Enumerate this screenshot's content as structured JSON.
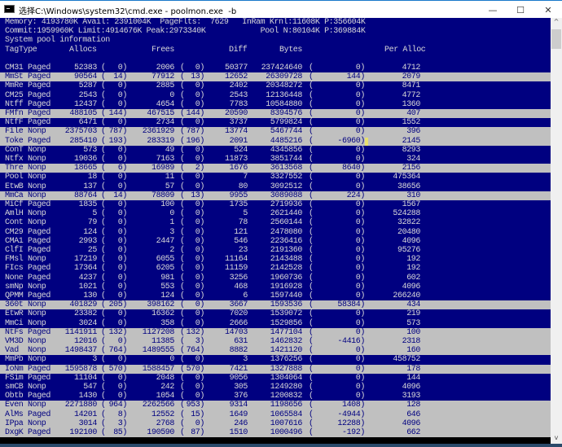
{
  "window": {
    "title": "选择C:\\Windows\\system32\\cmd.exe - poolmon.exe  -b",
    "minimize_glyph": "—",
    "maximize_glyph": "☐",
    "close_glyph": "✕"
  },
  "console": {
    "colors": {
      "background": "#000080",
      "text": "#d8d8d8",
      "highlight_bg": "#c0c0c0",
      "highlight_text": "#000080"
    },
    "summary_lines": [
      "Memory: 4193780K Avail: 2391004K  PageFlts:  7629   InRam Krnl:11608K P:356604K",
      "Commit:1959960K Limit:4914676K Peak:2973340K            Pool N:80104K P:369884K",
      "System pool information"
    ],
    "columns": {
      "tag": "Tag",
      "type": "Type",
      "allocs": "Allocs",
      "frees": "Frees",
      "diff": "Diff",
      "bytes": "Bytes",
      "per_alloc": "Per Alloc"
    },
    "rows": [
      {
        "tag": "CM31",
        "type": "Paged",
        "allocs": "52383",
        "allocs_delta": "0",
        "frees": "2006",
        "frees_delta": "0",
        "diff": "50377",
        "bytes": "237424640",
        "bytes_delta": "0",
        "per_alloc": "4712",
        "highlighted": false
      },
      {
        "tag": "MmSt",
        "type": "Paged",
        "allocs": "90564",
        "allocs_delta": "14",
        "frees": "77912",
        "frees_delta": "13",
        "diff": "12652",
        "bytes": "26309728",
        "bytes_delta": "144",
        "per_alloc": "2079",
        "highlighted": true
      },
      {
        "tag": "MmRe",
        "type": "Paged",
        "allocs": "5287",
        "allocs_delta": "0",
        "frees": "2885",
        "frees_delta": "0",
        "diff": "2402",
        "bytes": "20348272",
        "bytes_delta": "0",
        "per_alloc": "8471",
        "highlighted": false
      },
      {
        "tag": "CM25",
        "type": "Paged",
        "allocs": "2543",
        "allocs_delta": "0",
        "frees": "0",
        "frees_delta": "0",
        "diff": "2543",
        "bytes": "12136448",
        "bytes_delta": "0",
        "per_alloc": "4772",
        "highlighted": false
      },
      {
        "tag": "Ntff",
        "type": "Paged",
        "allocs": "12437",
        "allocs_delta": "0",
        "frees": "4654",
        "frees_delta": "0",
        "diff": "7783",
        "bytes": "10584880",
        "bytes_delta": "0",
        "per_alloc": "1360",
        "highlighted": false
      },
      {
        "tag": "FMfn",
        "type": "Paged",
        "allocs": "488105",
        "allocs_delta": "144",
        "frees": "467515",
        "frees_delta": "144",
        "diff": "20590",
        "bytes": "8394576",
        "bytes_delta": "0",
        "per_alloc": "407",
        "highlighted": true
      },
      {
        "tag": "NtfF",
        "type": "Paged",
        "allocs": "6471",
        "allocs_delta": "0",
        "frees": "2734",
        "frees_delta": "0",
        "diff": "3737",
        "bytes": "5799824",
        "bytes_delta": "0",
        "per_alloc": "1552",
        "highlighted": false
      },
      {
        "tag": "File",
        "type": "Nonp",
        "allocs": "2375703",
        "allocs_delta": "787",
        "frees": "2361929",
        "frees_delta": "787",
        "diff": "13774",
        "bytes": "5467744",
        "bytes_delta": "0",
        "per_alloc": "396",
        "highlighted": true
      },
      {
        "tag": "Toke",
        "type": "Paged",
        "allocs": "285410",
        "allocs_delta": "193",
        "frees": "283319",
        "frees_delta": "196",
        "diff": "2091",
        "bytes": "4485216",
        "bytes_delta": "-6960",
        "per_alloc": "2145",
        "highlighted": true
      },
      {
        "tag": "ConT",
        "type": "Nonp",
        "allocs": "573",
        "allocs_delta": "0",
        "frees": "49",
        "frees_delta": "0",
        "diff": "524",
        "bytes": "4345856",
        "bytes_delta": "0",
        "per_alloc": "8293",
        "highlighted": false
      },
      {
        "tag": "Ntfx",
        "type": "Nonp",
        "allocs": "19036",
        "allocs_delta": "0",
        "frees": "7163",
        "frees_delta": "0",
        "diff": "11873",
        "bytes": "3851744",
        "bytes_delta": "0",
        "per_alloc": "324",
        "highlighted": false
      },
      {
        "tag": "Thre",
        "type": "Nonp",
        "allocs": "18665",
        "allocs_delta": "6",
        "frees": "16989",
        "frees_delta": "2",
        "diff": "1676",
        "bytes": "3613568",
        "bytes_delta": "8640",
        "per_alloc": "2156",
        "highlighted": true
      },
      {
        "tag": "Pool",
        "type": "Nonp",
        "allocs": "18",
        "allocs_delta": "0",
        "frees": "11",
        "frees_delta": "0",
        "diff": "7",
        "bytes": "3327552",
        "bytes_delta": "0",
        "per_alloc": "475364",
        "highlighted": false
      },
      {
        "tag": "EtwB",
        "type": "Nonp",
        "allocs": "137",
        "allocs_delta": "0",
        "frees": "57",
        "frees_delta": "0",
        "diff": "80",
        "bytes": "3092512",
        "bytes_delta": "0",
        "per_alloc": "38656",
        "highlighted": false
      },
      {
        "tag": "MmCa",
        "type": "Nonp",
        "allocs": "88764",
        "allocs_delta": "14",
        "frees": "78809",
        "frees_delta": "13",
        "diff": "9955",
        "bytes": "3089088",
        "bytes_delta": "224",
        "per_alloc": "310",
        "highlighted": true
      },
      {
        "tag": "MiCf",
        "type": "Paged",
        "allocs": "1835",
        "allocs_delta": "0",
        "frees": "100",
        "frees_delta": "0",
        "diff": "1735",
        "bytes": "2719936",
        "bytes_delta": "0",
        "per_alloc": "1567",
        "highlighted": false
      },
      {
        "tag": "AmlH",
        "type": "Nonp",
        "allocs": "5",
        "allocs_delta": "0",
        "frees": "0",
        "frees_delta": "0",
        "diff": "5",
        "bytes": "2621440",
        "bytes_delta": "0",
        "per_alloc": "524288",
        "highlighted": false
      },
      {
        "tag": "Cont",
        "type": "Nonp",
        "allocs": "79",
        "allocs_delta": "0",
        "frees": "1",
        "frees_delta": "0",
        "diff": "78",
        "bytes": "2560144",
        "bytes_delta": "0",
        "per_alloc": "32822",
        "highlighted": false
      },
      {
        "tag": "CM29",
        "type": "Paged",
        "allocs": "124",
        "allocs_delta": "0",
        "frees": "3",
        "frees_delta": "0",
        "diff": "121",
        "bytes": "2478080",
        "bytes_delta": "0",
        "per_alloc": "20480",
        "highlighted": false
      },
      {
        "tag": "CMA1",
        "type": "Paged",
        "allocs": "2993",
        "allocs_delta": "0",
        "frees": "2447",
        "frees_delta": "0",
        "diff": "546",
        "bytes": "2236416",
        "bytes_delta": "0",
        "per_alloc": "4096",
        "highlighted": false
      },
      {
        "tag": "ClfI",
        "type": "Paged",
        "allocs": "25",
        "allocs_delta": "0",
        "frees": "2",
        "frees_delta": "0",
        "diff": "23",
        "bytes": "2191360",
        "bytes_delta": "0",
        "per_alloc": "95276",
        "highlighted": false
      },
      {
        "tag": "FMsl",
        "type": "Nonp",
        "allocs": "17219",
        "allocs_delta": "0",
        "frees": "6055",
        "frees_delta": "0",
        "diff": "11164",
        "bytes": "2143488",
        "bytes_delta": "0",
        "per_alloc": "192",
        "highlighted": false
      },
      {
        "tag": "FIcs",
        "type": "Paged",
        "allocs": "17364",
        "allocs_delta": "0",
        "frees": "6205",
        "frees_delta": "0",
        "diff": "11159",
        "bytes": "2142528",
        "bytes_delta": "0",
        "per_alloc": "192",
        "highlighted": false
      },
      {
        "tag": "None",
        "type": "Paged",
        "allocs": "4237",
        "allocs_delta": "0",
        "frees": "981",
        "frees_delta": "0",
        "diff": "3256",
        "bytes": "1960736",
        "bytes_delta": "0",
        "per_alloc": "602",
        "highlighted": false
      },
      {
        "tag": "smNp",
        "type": "Nonp",
        "allocs": "1021",
        "allocs_delta": "0",
        "frees": "553",
        "frees_delta": "0",
        "diff": "468",
        "bytes": "1916928",
        "bytes_delta": "0",
        "per_alloc": "4096",
        "highlighted": false
      },
      {
        "tag": "QPMM",
        "type": "Paged",
        "allocs": "130",
        "allocs_delta": "0",
        "frees": "124",
        "frees_delta": "0",
        "diff": "6",
        "bytes": "1597440",
        "bytes_delta": "0",
        "per_alloc": "266240",
        "highlighted": false
      },
      {
        "tag": "360t",
        "type": "Nonp",
        "allocs": "401829",
        "allocs_delta": "205",
        "frees": "398162",
        "frees_delta": "0",
        "diff": "3667",
        "bytes": "1593536",
        "bytes_delta": "58384",
        "per_alloc": "434",
        "highlighted": true
      },
      {
        "tag": "EtwR",
        "type": "Nonp",
        "allocs": "23382",
        "allocs_delta": "0",
        "frees": "16362",
        "frees_delta": "0",
        "diff": "7020",
        "bytes": "1539072",
        "bytes_delta": "0",
        "per_alloc": "219",
        "highlighted": false
      },
      {
        "tag": "MmCi",
        "type": "Nonp",
        "allocs": "3024",
        "allocs_delta": "0",
        "frees": "358",
        "frees_delta": "0",
        "diff": "2666",
        "bytes": "1529856",
        "bytes_delta": "0",
        "per_alloc": "573",
        "highlighted": false
      },
      {
        "tag": "NtFs",
        "type": "Paged",
        "allocs": "1141911",
        "allocs_delta": "132",
        "frees": "1127208",
        "frees_delta": "132",
        "diff": "14703",
        "bytes": "1477104",
        "bytes_delta": "0",
        "per_alloc": "100",
        "highlighted": true
      },
      {
        "tag": "VM3D",
        "type": "Nonp",
        "allocs": "12016",
        "allocs_delta": "0",
        "frees": "11385",
        "frees_delta": "3",
        "diff": "631",
        "bytes": "1462832",
        "bytes_delta": "-4416",
        "per_alloc": "2318",
        "highlighted": true
      },
      {
        "tag": "Vad",
        "type": "Nonp",
        "allocs": "1498437",
        "allocs_delta": "764",
        "frees": "1489555",
        "frees_delta": "764",
        "diff": "8882",
        "bytes": "1421120",
        "bytes_delta": "0",
        "per_alloc": "160",
        "highlighted": true
      },
      {
        "tag": "MmPb",
        "type": "Nonp",
        "allocs": "3",
        "allocs_delta": "0",
        "frees": "0",
        "frees_delta": "0",
        "diff": "3",
        "bytes": "1376256",
        "bytes_delta": "0",
        "per_alloc": "458752",
        "highlighted": false
      },
      {
        "tag": "IoNm",
        "type": "Paged",
        "allocs": "1595878",
        "allocs_delta": "570",
        "frees": "1588457",
        "frees_delta": "570",
        "diff": "7421",
        "bytes": "1327888",
        "bytes_delta": "0",
        "per_alloc": "178",
        "highlighted": true
      },
      {
        "tag": "FSim",
        "type": "Paged",
        "allocs": "11104",
        "allocs_delta": "0",
        "frees": "2048",
        "frees_delta": "0",
        "diff": "9056",
        "bytes": "1304064",
        "bytes_delta": "0",
        "per_alloc": "144",
        "highlighted": false
      },
      {
        "tag": "smCB",
        "type": "Nonp",
        "allocs": "547",
        "allocs_delta": "0",
        "frees": "242",
        "frees_delta": "0",
        "diff": "305",
        "bytes": "1249280",
        "bytes_delta": "0",
        "per_alloc": "4096",
        "highlighted": false
      },
      {
        "tag": "Obtb",
        "type": "Paged",
        "allocs": "1430",
        "allocs_delta": "0",
        "frees": "1054",
        "frees_delta": "0",
        "diff": "376",
        "bytes": "1200832",
        "bytes_delta": "0",
        "per_alloc": "3193",
        "highlighted": false
      },
      {
        "tag": "Even",
        "type": "Nonp",
        "allocs": "2271880",
        "allocs_delta": "964",
        "frees": "2262566",
        "frees_delta": "953",
        "diff": "9314",
        "bytes": "1198656",
        "bytes_delta": "1408",
        "per_alloc": "128",
        "highlighted": true
      },
      {
        "tag": "AlMs",
        "type": "Paged",
        "allocs": "14201",
        "allocs_delta": "8",
        "frees": "12552",
        "frees_delta": "15",
        "diff": "1649",
        "bytes": "1065584",
        "bytes_delta": "-4944",
        "per_alloc": "646",
        "highlighted": true
      },
      {
        "tag": "IPpa",
        "type": "Nonp",
        "allocs": "3014",
        "allocs_delta": "3",
        "frees": "2768",
        "frees_delta": "0",
        "diff": "246",
        "bytes": "1007616",
        "bytes_delta": "12288",
        "per_alloc": "4096",
        "highlighted": true
      },
      {
        "tag": "DxgK",
        "type": "Paged",
        "allocs": "192100",
        "allocs_delta": "85",
        "frees": "190590",
        "frees_delta": "87",
        "diff": "1510",
        "bytes": "1000496",
        "bytes_delta": "-192",
        "per_alloc": "662",
        "highlighted": true
      }
    ]
  },
  "scrollbar": {
    "up_glyph": "^",
    "down_glyph": "v"
  }
}
